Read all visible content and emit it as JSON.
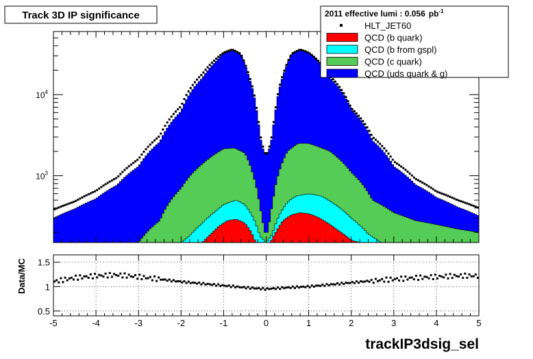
{
  "title": "Track 3D IP significance",
  "legend": {
    "header": "2011 effective lumi : 0.056",
    "header_unit": "pb",
    "header_unit_exp": "-1",
    "entries": [
      {
        "name": "HLT_JET60",
        "color": "#000000",
        "marker": "point"
      },
      {
        "name": "QCD (b quark)",
        "color": "#ff0000",
        "marker": "box"
      },
      {
        "name": "QCD (b from gspl)",
        "color": "#00ffff",
        "marker": "box"
      },
      {
        "name": "QCD (c quark)",
        "color": "#55cc55",
        "marker": "box"
      },
      {
        "name": "QCD (uds quark & g)",
        "color": "#0000ff",
        "marker": "box"
      }
    ]
  },
  "x_axis": {
    "label": "trackIP3dsig_sel",
    "range": [
      -5,
      5
    ],
    "ticks": [
      "-5",
      "-4",
      "-3",
      "-2",
      "-1",
      "0",
      "1",
      "2",
      "3",
      "4",
      "5"
    ]
  },
  "top_panel": {
    "y_scale": "log",
    "y_range": [
      150,
      60000
    ],
    "y_ticks": [
      {
        "base": "10",
        "exp": "3"
      },
      {
        "base": "10",
        "exp": "4"
      }
    ]
  },
  "bottom_panel": {
    "ylabel": "Data/MC",
    "y_range": [
      0.4,
      1.65
    ],
    "y_ticks": [
      "0.5",
      "1",
      "1.5"
    ],
    "grid": true
  },
  "chart_data": {
    "type": "area",
    "stacked": true,
    "x_range": [
      -5,
      5
    ],
    "y_scale": "log",
    "series": [
      {
        "name": "QCD (uds quark & g)",
        "color": "#0000ff",
        "x": [
          -5,
          -4.5,
          -4,
          -3.5,
          -3,
          -2.5,
          -2,
          -1.5,
          -1.2,
          -1,
          -0.8,
          -0.6,
          -0.4,
          -0.2,
          -0.12,
          -0.05,
          0,
          0.05,
          0.12,
          0.2,
          0.4,
          0.6,
          0.8,
          1,
          1.2,
          1.5,
          2,
          2.5,
          3,
          3.5,
          4,
          4.5,
          5
        ],
        "y": [
          300,
          390,
          520,
          770,
          1300,
          2600,
          6200,
          16000,
          25000,
          32000,
          35000,
          31000,
          16000,
          5000,
          2600,
          1900,
          1800,
          1900,
          2600,
          5000,
          17000,
          31000,
          36000,
          33000,
          26000,
          16000,
          6500,
          2700,
          1300,
          780,
          540,
          410,
          320
        ]
      },
      {
        "name": "QCD (c quark)",
        "color": "#55cc55",
        "x": [
          -5,
          -4.5,
          -4,
          -3.5,
          -3,
          -2.5,
          -2,
          -1.5,
          -1,
          -0.75,
          -0.5,
          -0.3,
          -0.15,
          -0.05,
          0,
          0.05,
          0.15,
          0.3,
          0.5,
          0.75,
          1,
          1.5,
          2,
          2.5,
          3,
          3.5,
          4,
          4.5,
          5
        ],
        "y": [
          150,
          150,
          150,
          150,
          150,
          280,
          700,
          1400,
          2150,
          2200,
          1900,
          1000,
          420,
          210,
          190,
          210,
          450,
          1100,
          2000,
          2500,
          2500,
          2000,
          1100,
          500,
          350,
          280,
          250,
          220,
          200
        ]
      },
      {
        "name": "QCD (b from gspl)",
        "color": "#00ffff",
        "x": [
          -2,
          -1.8,
          -1.5,
          -1.2,
          -1,
          -0.7,
          -0.5,
          -0.3,
          -0.15,
          0,
          0.15,
          0.3,
          0.5,
          0.7,
          1,
          1.3,
          1.6,
          2,
          2.4,
          2.7
        ],
        "y": [
          150,
          180,
          260,
          360,
          440,
          500,
          440,
          300,
          180,
          150,
          190,
          320,
          470,
          560,
          600,
          560,
          450,
          300,
          190,
          150
        ]
      },
      {
        "name": "QCD (b quark)",
        "color": "#ff0000",
        "x": [
          -1.5,
          -1.3,
          -1.1,
          -0.9,
          -0.7,
          -0.5,
          -0.35,
          -0.25,
          0.1,
          0.25,
          0.4,
          0.6,
          0.8,
          1,
          1.2,
          1.4,
          1.7,
          2,
          2.2
        ],
        "y": [
          150,
          190,
          240,
          280,
          290,
          260,
          200,
          150,
          150,
          210,
          280,
          330,
          350,
          340,
          310,
          270,
          210,
          160,
          150
        ]
      },
      {
        "name": "HLT_JET60",
        "color": "#000000",
        "marker": "point",
        "x": [
          -5,
          -4.5,
          -4,
          -3.5,
          -3,
          -2.5,
          -2,
          -1.5,
          -1.2,
          -1,
          -0.8,
          -0.6,
          -0.4,
          -0.2,
          -0.12,
          -0.05,
          0,
          0.05,
          0.12,
          0.2,
          0.4,
          0.6,
          0.8,
          1,
          1.2,
          1.5,
          2,
          2.5,
          3,
          3.5,
          4,
          4.5,
          5
        ],
        "y": [
          380,
          480,
          650,
          950,
          1600,
          3100,
          7200,
          18000,
          27000,
          33000,
          36000,
          32000,
          17000,
          5400,
          2800,
          2000,
          1800,
          2000,
          2800,
          5400,
          18000,
          32000,
          36000,
          33000,
          27000,
          17000,
          6800,
          3000,
          1500,
          920,
          640,
          500,
          400
        ]
      }
    ],
    "ratio": {
      "name": "Data/MC",
      "x": [
        -5,
        -4.5,
        -4,
        -3.5,
        -3,
        -2.5,
        -2,
        -1.5,
        -1,
        -0.5,
        0,
        0.5,
        1,
        1.5,
        2,
        2.5,
        3,
        3.5,
        4,
        4.5,
        5
      ],
      "y": [
        1.1,
        1.18,
        1.22,
        1.24,
        1.2,
        1.15,
        1.1,
        1.06,
        1.02,
        0.98,
        0.95,
        0.98,
        1.0,
        1.04,
        1.08,
        1.12,
        1.15,
        1.18,
        1.2,
        1.22,
        1.22
      ]
    }
  }
}
